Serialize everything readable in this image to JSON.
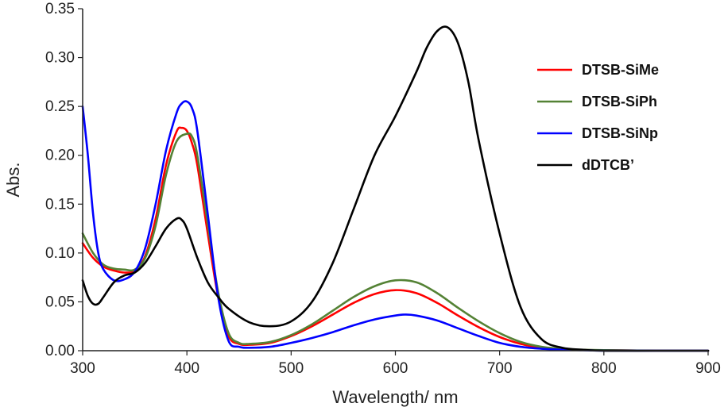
{
  "chart_data": {
    "type": "line",
    "title": "",
    "xlabel": "Wavelength/ nm",
    "ylabel": "Abs.",
    "xlim": [
      300,
      900
    ],
    "ylim": [
      0,
      0.35
    ],
    "x_ticks": [
      300,
      400,
      500,
      600,
      700,
      800,
      900
    ],
    "x_tick_labels": [
      "300",
      "400",
      "500",
      "600",
      "700",
      "800",
      "900"
    ],
    "y_ticks": [
      0,
      0.05,
      0.1,
      0.15,
      0.2,
      0.25,
      0.3,
      0.35
    ],
    "y_tick_labels": [
      "0.00",
      "0.05",
      "0.10",
      "0.15",
      "0.20",
      "0.25",
      "0.30",
      "0.35"
    ],
    "grid": false,
    "legend_position": "top-right",
    "series": [
      {
        "name": "DTSB-SiMe",
        "color": "#ff0000",
        "x": [
          300,
          310,
          320,
          330,
          340,
          350,
          360,
          370,
          380,
          390,
          395,
          400,
          405,
          410,
          420,
          430,
          440,
          450,
          460,
          480,
          500,
          520,
          540,
          560,
          580,
          600,
          620,
          640,
          660,
          680,
          700,
          720,
          740,
          760,
          780,
          800,
          850,
          900
        ],
        "y": [
          0.11,
          0.095,
          0.086,
          0.082,
          0.08,
          0.082,
          0.097,
          0.135,
          0.19,
          0.224,
          0.228,
          0.225,
          0.212,
          0.19,
          0.12,
          0.055,
          0.015,
          0.007,
          0.006,
          0.008,
          0.015,
          0.025,
          0.037,
          0.049,
          0.058,
          0.062,
          0.059,
          0.049,
          0.036,
          0.024,
          0.014,
          0.007,
          0.003,
          0.0015,
          0.0008,
          0.0005,
          0.0,
          0.0
        ]
      },
      {
        "name": "DTSB-SiPh",
        "color": "#548235",
        "x": [
          300,
          310,
          320,
          330,
          340,
          350,
          360,
          370,
          380,
          390,
          400,
          405,
          410,
          420,
          430,
          440,
          450,
          460,
          480,
          500,
          520,
          540,
          560,
          580,
          600,
          620,
          640,
          660,
          680,
          700,
          720,
          740,
          760,
          780,
          800,
          850,
          900
        ],
        "y": [
          0.12,
          0.1,
          0.088,
          0.084,
          0.083,
          0.083,
          0.095,
          0.128,
          0.18,
          0.214,
          0.222,
          0.219,
          0.2,
          0.13,
          0.06,
          0.018,
          0.008,
          0.007,
          0.009,
          0.016,
          0.027,
          0.041,
          0.055,
          0.066,
          0.072,
          0.07,
          0.059,
          0.044,
          0.03,
          0.018,
          0.009,
          0.004,
          0.0018,
          0.001,
          0.0006,
          0.0,
          0.0
        ]
      },
      {
        "name": "DTSB-SiNp",
        "color": "#0000ff",
        "x": [
          300,
          305,
          310,
          315,
          320,
          330,
          340,
          350,
          360,
          370,
          380,
          390,
          395,
          400,
          405,
          410,
          420,
          430,
          440,
          450,
          460,
          480,
          500,
          520,
          540,
          560,
          580,
          600,
          610,
          620,
          640,
          660,
          680,
          700,
          720,
          740,
          760,
          780,
          800,
          850,
          900
        ],
        "y": [
          0.25,
          0.2,
          0.14,
          0.1,
          0.083,
          0.072,
          0.073,
          0.081,
          0.105,
          0.15,
          0.205,
          0.243,
          0.253,
          0.255,
          0.248,
          0.225,
          0.14,
          0.055,
          0.01,
          0.004,
          0.003,
          0.004,
          0.008,
          0.013,
          0.019,
          0.026,
          0.032,
          0.036,
          0.037,
          0.036,
          0.031,
          0.023,
          0.015,
          0.008,
          0.004,
          0.002,
          0.001,
          0.0005,
          0.0,
          0.0,
          0.0
        ]
      },
      {
        "name": "dDTCB’",
        "color": "#000000",
        "x": [
          300,
          305,
          310,
          315,
          320,
          330,
          340,
          350,
          360,
          370,
          380,
          390,
          395,
          400,
          410,
          420,
          430,
          440,
          460,
          480,
          500,
          520,
          540,
          560,
          580,
          600,
          620,
          630,
          640,
          650,
          660,
          670,
          680,
          700,
          720,
          740,
          760,
          780,
          800,
          850,
          900
        ],
        "y": [
          0.072,
          0.056,
          0.048,
          0.048,
          0.055,
          0.07,
          0.077,
          0.08,
          0.09,
          0.107,
          0.125,
          0.135,
          0.134,
          0.125,
          0.095,
          0.07,
          0.055,
          0.043,
          0.029,
          0.025,
          0.03,
          0.05,
          0.09,
          0.145,
          0.2,
          0.24,
          0.285,
          0.31,
          0.327,
          0.331,
          0.315,
          0.275,
          0.215,
          0.12,
          0.045,
          0.012,
          0.003,
          0.001,
          0.0,
          0.0,
          0.0
        ]
      }
    ]
  }
}
